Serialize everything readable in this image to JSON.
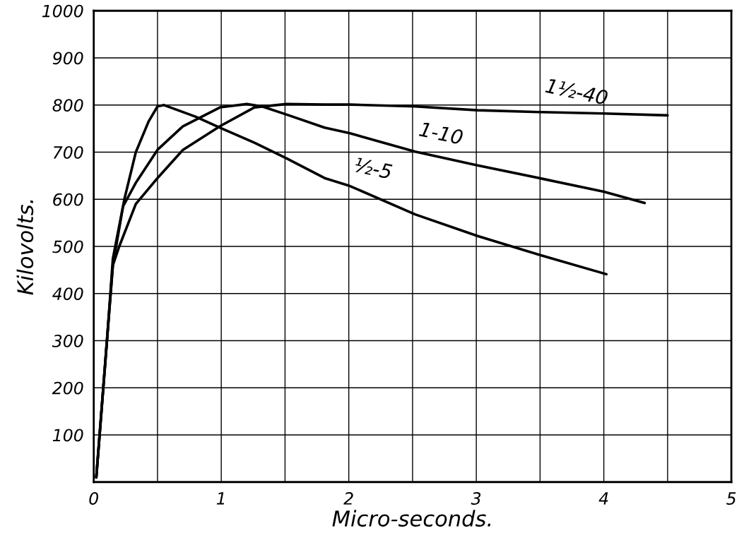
{
  "chart_data": {
    "type": "line",
    "xlabel": "Micro-seconds.",
    "ylabel": "Kilovolts.",
    "xlim": [
      0,
      5
    ],
    "ylim": [
      0,
      1000
    ],
    "xticks": [
      0,
      {
        "value": 0.5,
        "label": null
      },
      1,
      {
        "value": 1.5,
        "label": null
      },
      2,
      {
        "value": 2.5,
        "label": null
      },
      3,
      {
        "value": 3.5,
        "label": null
      },
      4,
      {
        "value": 4.5,
        "label": null
      },
      5
    ],
    "yticks": [
      {
        "value": 0,
        "label": null
      },
      100,
      200,
      300,
      400,
      500,
      600,
      700,
      800,
      900,
      1000
    ],
    "grid": true,
    "legend": false,
    "marker": "none",
    "line_style": "solid",
    "series": [
      {
        "name": "½-5",
        "color": "#000000",
        "x": [
          0.02,
          0.105,
          0.15,
          0.24,
          0.33,
          0.43,
          0.5,
          0.55,
          0.6,
          0.8,
          0.99,
          1.26,
          1.51,
          1.81,
          2.01,
          2.52,
          3.01,
          3.51,
          4.02
        ],
        "values": [
          10,
          305,
          474,
          600,
          700,
          765,
          797,
          800,
          795,
          775,
          752,
          720,
          687,
          645,
          628,
          568,
          522,
          481,
          441
        ]
      },
      {
        "name": "1-10",
        "color": "#000000",
        "x": [
          0.02,
          0.105,
          0.15,
          0.23,
          0.33,
          0.5,
          0.7,
          0.99,
          1.2,
          1.32,
          1.51,
          1.81,
          2.01,
          2.52,
          3.01,
          3.51,
          4.0,
          4.32
        ],
        "values": [
          10,
          305,
          460,
          585,
          635,
          705,
          755,
          795,
          802,
          797,
          780,
          752,
          740,
          701,
          672,
          644,
          616,
          592
        ]
      },
      {
        "name": "1½-40",
        "color": "#000000",
        "x": [
          0.02,
          0.105,
          0.15,
          0.2,
          0.33,
          0.5,
          0.7,
          0.99,
          1.26,
          1.51,
          1.81,
          2.01,
          2.52,
          3.01,
          3.51,
          4.0,
          4.5
        ],
        "values": [
          10,
          305,
          460,
          500,
          590,
          645,
          705,
          755,
          795,
          802,
          801,
          801,
          797,
          789,
          785,
          782,
          778
        ]
      }
    ]
  }
}
